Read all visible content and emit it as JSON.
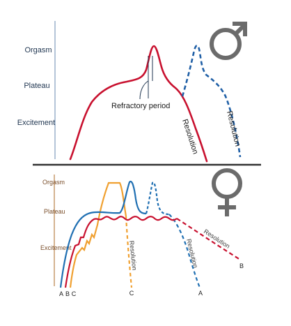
{
  "male": {
    "axis_labels": [
      "Orgasm",
      "Plateau",
      "Excitement"
    ],
    "refractory_label": "Refractory period",
    "resolution_label_1": "Resolution",
    "resolution_label_2": "Resolution",
    "symbol": "male-symbol"
  },
  "female": {
    "axis_labels": [
      "Orgasm",
      "Plateau",
      "Excitement"
    ],
    "resolution_labels": [
      "Resolution",
      "Resolution",
      "Resolution"
    ],
    "curve_end_labels": [
      "C",
      "A",
      "B"
    ],
    "curve_start_labels": [
      "A",
      "B",
      "C"
    ],
    "symbol": "female-symbol"
  },
  "colors": {
    "male_curve": "#c8102e",
    "male_curve_dashed": "#1f5fa6",
    "female_curve_a": "#1f6fb2",
    "female_curve_b": "#c8102e",
    "female_curve_c": "#f0a030",
    "male_axis": "#9ab0cc",
    "female_axis": "#c79a6b",
    "divider": "#333333",
    "symbol": "#6b6b6b"
  }
}
